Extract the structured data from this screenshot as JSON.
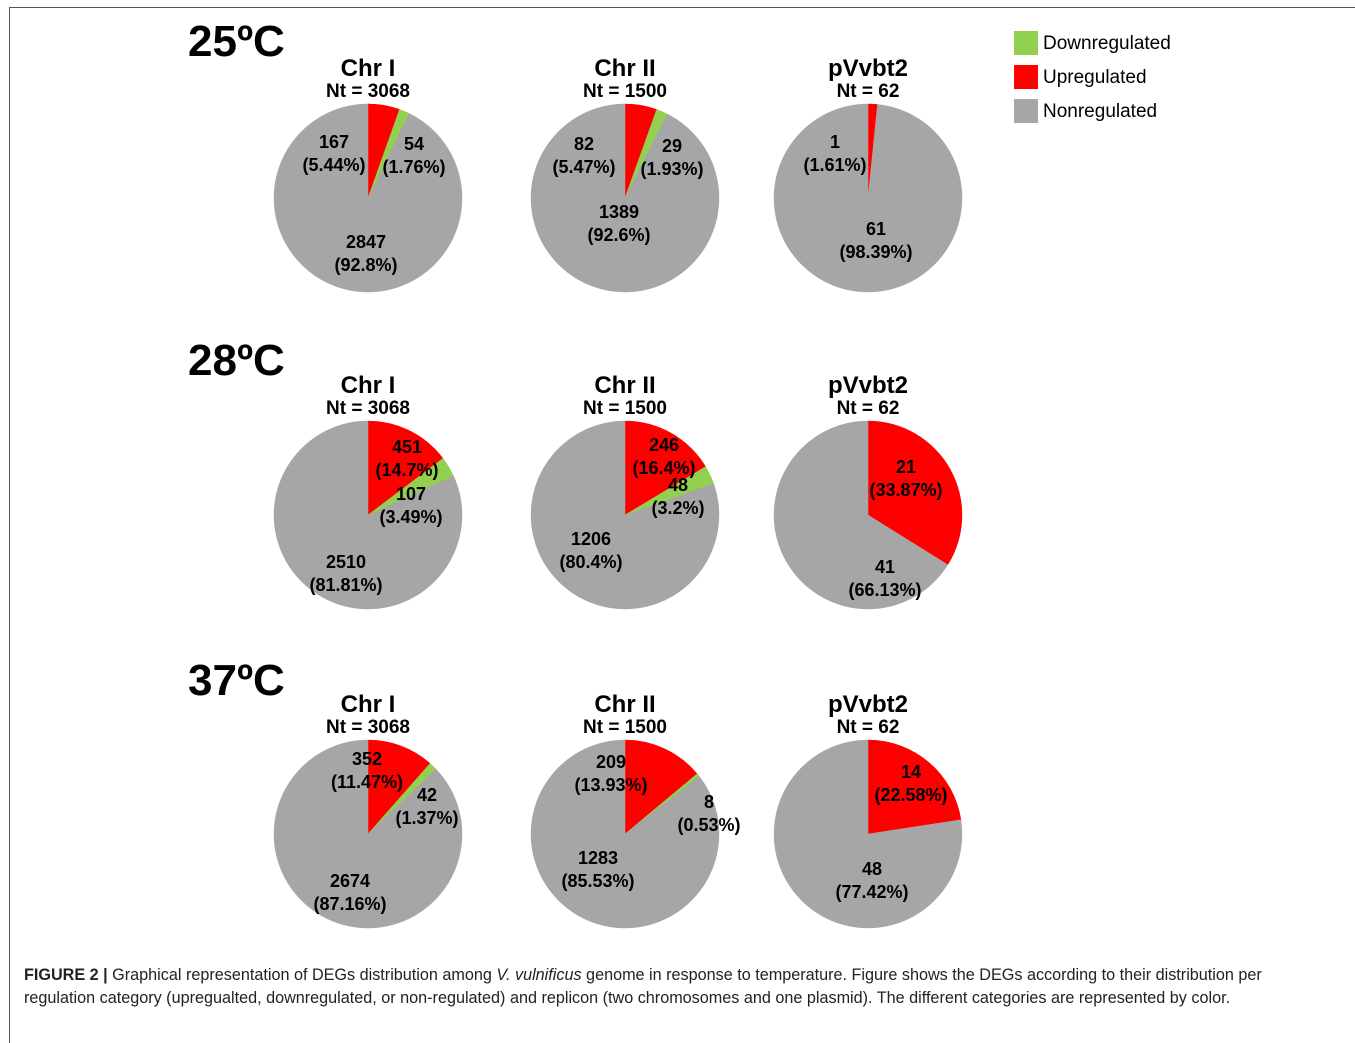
{
  "colors": {
    "downregulated": "#92d050",
    "upregulated": "#ff0000",
    "nonregulated": "#a6a6a6"
  },
  "legend": [
    {
      "key": "downregulated",
      "label": "Downregulated"
    },
    {
      "key": "upregulated",
      "label": "Upregulated"
    },
    {
      "key": "nonregulated",
      "label": "Nonregulated"
    }
  ],
  "chart_data": [
    {
      "type": "pie",
      "temperature": "25ºC",
      "title": "Chr I",
      "subtitle": "Nt = 3068",
      "slices": [
        {
          "category": "upregulated",
          "value": 167,
          "label": "167",
          "pct": "(5.44%)"
        },
        {
          "category": "downregulated",
          "value": 54,
          "label": "54",
          "pct": "(1.76%)"
        },
        {
          "category": "nonregulated",
          "value": 2847,
          "label": "2847",
          "pct": "(92.8%)"
        }
      ]
    },
    {
      "type": "pie",
      "temperature": "25ºC",
      "title": "Chr II",
      "subtitle": "Nt = 1500",
      "slices": [
        {
          "category": "upregulated",
          "value": 82,
          "label": "82",
          "pct": "(5.47%)"
        },
        {
          "category": "downregulated",
          "value": 29,
          "label": "29",
          "pct": "(1.93%)"
        },
        {
          "category": "nonregulated",
          "value": 1389,
          "label": "1389",
          "pct": "(92.6%)"
        }
      ]
    },
    {
      "type": "pie",
      "temperature": "25ºC",
      "title": "pVvbt2",
      "subtitle": "Nt = 62",
      "slices": [
        {
          "category": "upregulated",
          "value": 1,
          "label": "1",
          "pct": "(1.61%)"
        },
        {
          "category": "downregulated",
          "value": 0,
          "label": "",
          "pct": ""
        },
        {
          "category": "nonregulated",
          "value": 61,
          "label": "61",
          "pct": "(98.39%)"
        }
      ]
    },
    {
      "type": "pie",
      "temperature": "28ºC",
      "title": "Chr I",
      "subtitle": "Nt = 3068",
      "slices": [
        {
          "category": "upregulated",
          "value": 451,
          "label": "451",
          "pct": "(14.7%)"
        },
        {
          "category": "downregulated",
          "value": 107,
          "label": "107",
          "pct": "(3.49%)"
        },
        {
          "category": "nonregulated",
          "value": 2510,
          "label": "2510",
          "pct": "(81.81%)"
        }
      ]
    },
    {
      "type": "pie",
      "temperature": "28ºC",
      "title": "Chr II",
      "subtitle": "Nt = 1500",
      "slices": [
        {
          "category": "upregulated",
          "value": 246,
          "label": "246",
          "pct": "(16.4%)"
        },
        {
          "category": "downregulated",
          "value": 48,
          "label": "48",
          "pct": "(3.2%)"
        },
        {
          "category": "nonregulated",
          "value": 1206,
          "label": "1206",
          "pct": "(80.4%)"
        }
      ]
    },
    {
      "type": "pie",
      "temperature": "28ºC",
      "title": "pVvbt2",
      "subtitle": "Nt = 62",
      "slices": [
        {
          "category": "upregulated",
          "value": 21,
          "label": "21",
          "pct": "(33.87%)"
        },
        {
          "category": "downregulated",
          "value": 0,
          "label": "",
          "pct": ""
        },
        {
          "category": "nonregulated",
          "value": 41,
          "label": "41",
          "pct": "(66.13%)"
        }
      ]
    },
    {
      "type": "pie",
      "temperature": "37ºC",
      "title": "Chr I",
      "subtitle": "Nt = 3068",
      "slices": [
        {
          "category": "upregulated",
          "value": 352,
          "label": "352",
          "pct": "(11.47%)"
        },
        {
          "category": "downregulated",
          "value": 42,
          "label": "42",
          "pct": "(1.37%)"
        },
        {
          "category": "nonregulated",
          "value": 2674,
          "label": "2674",
          "pct": "(87.16%)"
        }
      ]
    },
    {
      "type": "pie",
      "temperature": "37ºC",
      "title": "Chr II",
      "subtitle": "Nt = 1500",
      "slices": [
        {
          "category": "upregulated",
          "value": 209,
          "label": "209",
          "pct": "(13.93%)"
        },
        {
          "category": "downregulated",
          "value": 8,
          "label": "8",
          "pct": "(0.53%)"
        },
        {
          "category": "nonregulated",
          "value": 1283,
          "label": "1283",
          "pct": "(85.53%)"
        }
      ]
    },
    {
      "type": "pie",
      "temperature": "37ºC",
      "title": "pVvbt2",
      "subtitle": "Nt = 62",
      "slices": [
        {
          "category": "upregulated",
          "value": 14,
          "label": "14",
          "pct": "(22.58%)"
        },
        {
          "category": "downregulated",
          "value": 0,
          "label": "",
          "pct": ""
        },
        {
          "category": "nonregulated",
          "value": 48,
          "label": "48",
          "pct": "(77.42%)"
        }
      ]
    }
  ],
  "caption": {
    "figure_label": "FIGURE 2 |",
    "text_before_species": " Graphical representation of DEGs distribution among ",
    "species": "V. vulnificus",
    "text_after_species": " genome in response to temperature. Figure shows the DEGs according to their distribution per regulation category (upregualted, downregulated, or non-regulated) and replicon (two chromosomes and one plasmid). The different categories are represented by color."
  }
}
